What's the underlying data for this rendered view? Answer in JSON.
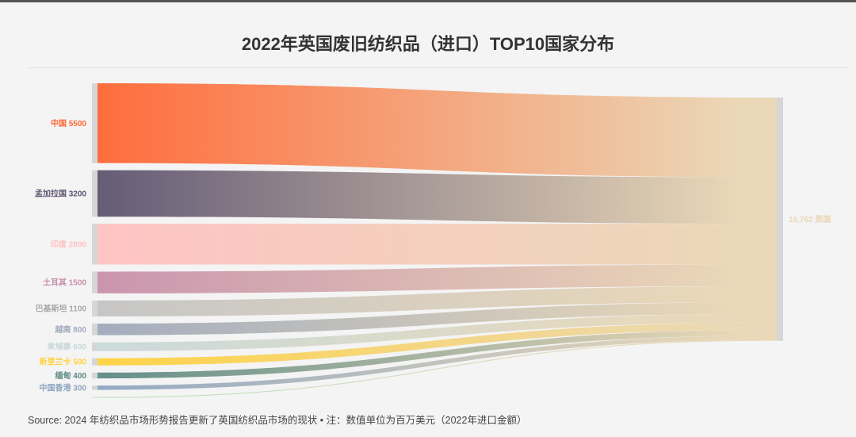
{
  "title": "2022年英国废旧纺织品（进口）TOP10国家分布",
  "source": "Source: 2024 年纺织品市场形势报告更新了英国纺织品市场的现状 • 注：数值单位为百万美元（2022年进口金额）",
  "chart_data": {
    "type": "sankey",
    "title": "2022年英国废旧纺织品（进口）TOP10国家分布",
    "unit": "百万美元",
    "target": {
      "name": "英国",
      "value": 16762,
      "label": "16,762 英国",
      "color": "#ead7b5"
    },
    "sources": [
      {
        "name": "中国",
        "value": 5500,
        "color": "#ff6633"
      },
      {
        "name": "孟加拉国",
        "value": 3200,
        "color": "#5e5470"
      },
      {
        "name": "印度",
        "value": 2800,
        "color": "#ffc1c1"
      },
      {
        "name": "土耳其",
        "value": 1500,
        "color": "#c890aa"
      },
      {
        "name": "巴基斯坦",
        "value": 1100,
        "color": "#c4c4c4"
      },
      {
        "name": "越南",
        "value": 800,
        "color": "#a0aabb"
      },
      {
        "name": "柬埔寨",
        "value": 600,
        "color": "#c9d9d9"
      },
      {
        "name": "斯里兰卡",
        "value": 500,
        "color": "#ffd23f"
      },
      {
        "name": "缅甸",
        "value": 400,
        "color": "#5d8a84"
      },
      {
        "name": "中国香港",
        "value": 300,
        "color": "#8fa6c0"
      },
      {
        "name": "",
        "value": 62,
        "color": "#b9ddb9"
      }
    ]
  }
}
